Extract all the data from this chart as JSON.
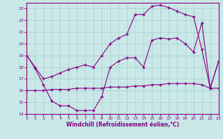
{
  "xlabel": "Windchill (Refroidissement éolien,°C)",
  "xlim": [
    0,
    23
  ],
  "ylim": [
    14,
    23.5
  ],
  "yticks": [
    14,
    15,
    16,
    17,
    18,
    19,
    20,
    21,
    22,
    23
  ],
  "xticks": [
    0,
    1,
    2,
    3,
    4,
    5,
    6,
    7,
    8,
    9,
    10,
    11,
    12,
    13,
    14,
    15,
    16,
    17,
    18,
    19,
    20,
    21,
    22,
    23
  ],
  "bg_color": "#c8e8e8",
  "line_color": "#880088",
  "grid_color": "#aacccc",
  "line1_x": [
    0,
    1,
    2,
    3,
    4,
    5,
    6,
    7,
    8,
    9,
    10,
    11,
    12,
    13,
    14,
    15,
    16,
    17,
    18,
    19,
    20,
    21,
    22,
    23
  ],
  "line1_y": [
    19,
    17.9,
    16.5,
    15.1,
    14.7,
    14.7,
    14.3,
    14.3,
    14.3,
    15.5,
    18.0,
    18.5,
    18.8,
    18.8,
    18.0,
    20.3,
    20.5,
    20.4,
    20.5,
    20.0,
    19.3,
    21.8,
    16.2,
    18.5
  ],
  "line2_x": [
    0,
    1,
    2,
    3,
    4,
    5,
    6,
    7,
    8,
    9,
    10,
    11,
    12,
    13,
    14,
    15,
    16,
    17,
    18,
    19,
    20,
    21,
    22,
    23
  ],
  "line2_y": [
    19,
    18.0,
    17.0,
    17.2,
    17.5,
    17.8,
    18.0,
    18.2,
    18.0,
    19.0,
    20.0,
    20.5,
    20.8,
    22.5,
    22.5,
    23.2,
    23.3,
    23.1,
    22.8,
    22.5,
    22.3,
    19.5,
    16.2,
    18.5
  ],
  "line3_x": [
    0,
    1,
    2,
    3,
    4,
    5,
    6,
    7,
    8,
    9,
    10,
    11,
    12,
    13,
    14,
    15,
    16,
    17,
    18,
    19,
    20,
    21,
    22,
    23
  ],
  "line3_y": [
    16.0,
    16.0,
    16.0,
    16.1,
    16.1,
    16.1,
    16.2,
    16.2,
    16.2,
    16.2,
    16.3,
    16.3,
    16.3,
    16.4,
    16.4,
    16.5,
    16.5,
    16.6,
    16.6,
    16.6,
    16.6,
    16.5,
    16.2,
    16.2
  ]
}
